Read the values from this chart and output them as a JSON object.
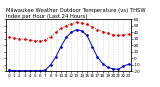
{
  "title": "Milwaukee Weather Outdoor Temperature (vs) THSW Index per Hour (Last 24 Hours)",
  "hours": [
    0,
    1,
    2,
    3,
    4,
    5,
    6,
    7,
    8,
    9,
    10,
    11,
    12,
    13,
    14,
    15,
    16,
    17,
    18,
    19,
    20,
    21,
    22,
    23
  ],
  "temp": [
    33,
    31,
    30,
    29,
    28,
    27,
    27,
    28,
    33,
    40,
    46,
    50,
    53,
    55,
    54,
    52,
    48,
    44,
    41,
    38,
    36,
    35,
    36,
    37
  ],
  "thsw": [
    -18,
    -19,
    -19,
    -19,
    -19,
    -19,
    -19,
    -18,
    -10,
    2,
    18,
    32,
    40,
    44,
    42,
    35,
    18,
    2,
    -8,
    -14,
    -16,
    -17,
    -12,
    -9
  ],
  "temp_color": "#dd0000",
  "thsw_color": "#0000cc",
  "bg_color": "#ffffff",
  "plot_bg": "#ffffff",
  "grid_color": "#aaaaaa",
  "title_color": "#000000",
  "ylim": [
    -20,
    60
  ],
  "yticks": [
    -20,
    -10,
    0,
    10,
    20,
    30,
    40,
    50,
    60
  ],
  "title_fontsize": 3.8,
  "tick_fontsize": 3.0,
  "marker_size": 1.8,
  "line_width": 0.7,
  "fig_width": 1.6,
  "fig_height": 0.87,
  "dpi": 100
}
